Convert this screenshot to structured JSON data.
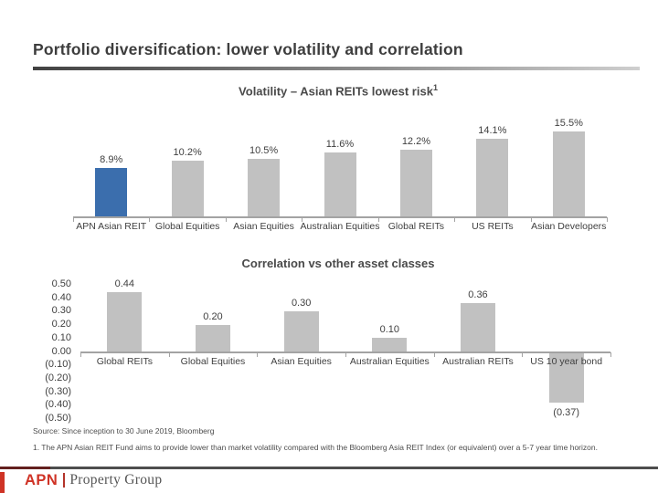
{
  "slide_title": "Portfolio diversification: lower volatility and correlation",
  "chart_data": [
    {
      "type": "bar",
      "title": "Volatility – Asian REITs lowest risk",
      "title_sup": "1",
      "categories": [
        "APN Asian REIT",
        "Global Equities",
        "Asian Equities",
        "Australian Equities",
        "Global REITs",
        "US REITs",
        "Asian Developers"
      ],
      "values": [
        8.9,
        10.2,
        10.5,
        11.6,
        12.2,
        14.1,
        15.5
      ],
      "value_labels": [
        "8.9%",
        "10.2%",
        "10.5%",
        "11.6%",
        "12.2%",
        "14.1%",
        "15.5%"
      ],
      "unit": "%",
      "ylim": [
        0,
        16
      ],
      "grid": false,
      "legend": false,
      "highlight_index": 0,
      "highlight_color": "#3b6ead",
      "bar_color": "#c1c1c1"
    },
    {
      "type": "bar",
      "title": "Correlation vs other asset classes",
      "categories": [
        "Global REITs",
        "Global Equities",
        "Asian Equities",
        "Australian Equities",
        "Australian REITs",
        "US 10 year bond"
      ],
      "values": [
        0.44,
        0.2,
        0.3,
        0.1,
        0.36,
        -0.37
      ],
      "value_labels": [
        "0.44",
        "0.20",
        "0.30",
        "0.10",
        "0.36",
        "(0.37)"
      ],
      "y_ticks": [
        "0.50",
        "0.40",
        "0.30",
        "0.20",
        "0.10",
        "0.00",
        "(0.10)",
        "(0.20)",
        "(0.30)",
        "(0.40)",
        "(0.50)"
      ],
      "ylim": [
        -0.5,
        0.5
      ],
      "grid": false,
      "legend": false,
      "highlight_index": -1,
      "highlight_color": "#3b6ead",
      "bar_color": "#c1c1c1"
    }
  ],
  "footer": {
    "source": "Source: Since inception to 30 June 2019, Bloomberg",
    "footnote": "1. The APN Asian REIT Fund aims to provide lower than market volatility compared with the Bloomberg Asia REIT Index (or equivalent) over a 5-7 year time horizon.",
    "logo_brand": "APN",
    "logo_name": "Property Group"
  },
  "colors": {
    "highlight_blue": "#3b6ead",
    "bar_gray": "#c1c1c1",
    "axis_gray": "#a3a3a3",
    "brand_red": "#cf3326"
  }
}
